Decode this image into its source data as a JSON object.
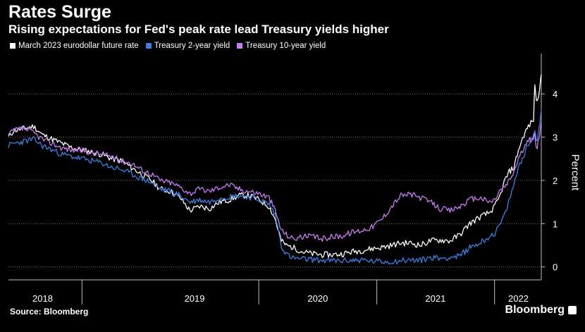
{
  "header": {
    "title": "Rates Surge",
    "subtitle": "Rising expectations for Fed's peak rate lead Treasury yields higher"
  },
  "footer": {
    "source": "Source: Bloomberg",
    "brand": "Bloomberg"
  },
  "colors": {
    "background": "#000000",
    "grid": "#6b6b6b",
    "axis": "#bfbfbf"
  },
  "chart_data": {
    "type": "line",
    "ylabel": "Percent",
    "ylim": [
      -0.3,
      4.9
    ],
    "y_ticks": [
      0,
      1,
      2,
      3,
      4
    ],
    "grid": true,
    "legend_position": "top-left",
    "x_range": [
      "2017-11-15",
      "2022-05-25"
    ],
    "x_tick_labels": [
      "2018",
      "2019",
      "2020",
      "2021",
      "2022"
    ],
    "x_tick_label_positions": [
      "2018-03-01",
      "2019-06-15",
      "2020-07-01",
      "2021-07-01",
      "2022-03-15"
    ],
    "x_separators": [
      "2018-07-01",
      "2019-12-31",
      "2020-12-31",
      "2021-12-31"
    ],
    "series": [
      {
        "name": "March 2023 eurodollar future rate",
        "color": "#ffffff",
        "points": [
          [
            "2017-11-15",
            3.0
          ],
          [
            "2017-12-01",
            3.15
          ],
          [
            "2018-01-01",
            3.2
          ],
          [
            "2018-02-01",
            3.25
          ],
          [
            "2018-03-01",
            3.05
          ],
          [
            "2018-04-01",
            2.95
          ],
          [
            "2018-05-01",
            2.85
          ],
          [
            "2018-06-01",
            2.75
          ],
          [
            "2018-07-01",
            2.7
          ],
          [
            "2018-08-01",
            2.65
          ],
          [
            "2018-09-01",
            2.6
          ],
          [
            "2018-10-01",
            2.5
          ],
          [
            "2018-11-01",
            2.45
          ],
          [
            "2018-12-01",
            2.3
          ],
          [
            "2019-01-01",
            2.15
          ],
          [
            "2019-02-01",
            2.0
          ],
          [
            "2019-03-01",
            1.8
          ],
          [
            "2019-04-01",
            1.75
          ],
          [
            "2019-05-01",
            1.6
          ],
          [
            "2019-06-01",
            1.3
          ],
          [
            "2019-07-01",
            1.4
          ],
          [
            "2019-08-01",
            1.35
          ],
          [
            "2019-09-01",
            1.5
          ],
          [
            "2019-10-01",
            1.55
          ],
          [
            "2019-11-01",
            1.65
          ],
          [
            "2019-12-01",
            1.65
          ],
          [
            "2020-01-01",
            1.55
          ],
          [
            "2020-02-01",
            1.4
          ],
          [
            "2020-02-20",
            1.1
          ],
          [
            "2020-03-10",
            0.6
          ],
          [
            "2020-03-25",
            0.5
          ],
          [
            "2020-04-15",
            0.45
          ],
          [
            "2020-05-15",
            0.35
          ],
          [
            "2020-06-15",
            0.3
          ],
          [
            "2020-07-15",
            0.28
          ],
          [
            "2020-08-15",
            0.28
          ],
          [
            "2020-09-15",
            0.3
          ],
          [
            "2020-10-15",
            0.35
          ],
          [
            "2020-11-15",
            0.38
          ],
          [
            "2020-12-15",
            0.42
          ],
          [
            "2021-01-15",
            0.45
          ],
          [
            "2021-02-15",
            0.5
          ],
          [
            "2021-03-15",
            0.55
          ],
          [
            "2021-04-15",
            0.55
          ],
          [
            "2021-05-15",
            0.5
          ],
          [
            "2021-06-15",
            0.6
          ],
          [
            "2021-07-15",
            0.62
          ],
          [
            "2021-08-15",
            0.6
          ],
          [
            "2021-09-15",
            0.75
          ],
          [
            "2021-10-15",
            1.0
          ],
          [
            "2021-11-15",
            1.15
          ],
          [
            "2021-12-15",
            1.25
          ],
          [
            "2022-01-01",
            1.4
          ],
          [
            "2022-01-15",
            1.6
          ],
          [
            "2022-02-01",
            2.0
          ],
          [
            "2022-02-15",
            2.2
          ],
          [
            "2022-03-01",
            2.3
          ],
          [
            "2022-03-15",
            2.7
          ],
          [
            "2022-04-01",
            3.05
          ],
          [
            "2022-04-15",
            3.25
          ],
          [
            "2022-05-01",
            3.4
          ],
          [
            "2022-05-05",
            4.25
          ],
          [
            "2022-05-10",
            3.8
          ],
          [
            "2022-05-15",
            3.95
          ],
          [
            "2022-05-20",
            4.15
          ],
          [
            "2022-05-25",
            4.45
          ]
        ]
      },
      {
        "name": "Treasury 2-year yield",
        "color": "#3d7fe0",
        "points": [
          [
            "2017-11-15",
            2.8
          ],
          [
            "2017-12-01",
            2.85
          ],
          [
            "2018-01-01",
            2.9
          ],
          [
            "2018-02-01",
            2.95
          ],
          [
            "2018-03-01",
            2.8
          ],
          [
            "2018-04-01",
            2.7
          ],
          [
            "2018-05-01",
            2.6
          ],
          [
            "2018-06-01",
            2.55
          ],
          [
            "2018-07-01",
            2.5
          ],
          [
            "2018-08-01",
            2.45
          ],
          [
            "2018-09-01",
            2.4
          ],
          [
            "2018-10-01",
            2.3
          ],
          [
            "2018-11-01",
            2.25
          ],
          [
            "2018-12-01",
            2.15
          ],
          [
            "2019-01-01",
            2.05
          ],
          [
            "2019-02-01",
            1.95
          ],
          [
            "2019-03-01",
            1.8
          ],
          [
            "2019-04-01",
            1.75
          ],
          [
            "2019-05-01",
            1.65
          ],
          [
            "2019-06-01",
            1.5
          ],
          [
            "2019-07-01",
            1.55
          ],
          [
            "2019-08-01",
            1.5
          ],
          [
            "2019-09-01",
            1.6
          ],
          [
            "2019-10-01",
            1.62
          ],
          [
            "2019-11-01",
            1.65
          ],
          [
            "2019-12-01",
            1.62
          ],
          [
            "2020-01-01",
            1.55
          ],
          [
            "2020-02-01",
            1.45
          ],
          [
            "2020-02-20",
            1.2
          ],
          [
            "2020-03-10",
            0.5
          ],
          [
            "2020-03-25",
            0.3
          ],
          [
            "2020-04-15",
            0.2
          ],
          [
            "2020-05-15",
            0.18
          ],
          [
            "2020-06-15",
            0.17
          ],
          [
            "2020-07-15",
            0.15
          ],
          [
            "2020-08-15",
            0.14
          ],
          [
            "2020-09-15",
            0.14
          ],
          [
            "2020-10-15",
            0.15
          ],
          [
            "2020-11-15",
            0.16
          ],
          [
            "2020-12-15",
            0.13
          ],
          [
            "2021-01-15",
            0.12
          ],
          [
            "2021-02-15",
            0.12
          ],
          [
            "2021-03-15",
            0.15
          ],
          [
            "2021-04-15",
            0.16
          ],
          [
            "2021-05-15",
            0.15
          ],
          [
            "2021-06-15",
            0.22
          ],
          [
            "2021-07-15",
            0.2
          ],
          [
            "2021-08-15",
            0.22
          ],
          [
            "2021-09-15",
            0.25
          ],
          [
            "2021-10-15",
            0.45
          ],
          [
            "2021-11-15",
            0.55
          ],
          [
            "2021-12-15",
            0.7
          ],
          [
            "2022-01-01",
            0.78
          ],
          [
            "2022-01-15",
            0.95
          ],
          [
            "2022-02-01",
            1.2
          ],
          [
            "2022-02-15",
            1.55
          ],
          [
            "2022-03-01",
            1.9
          ],
          [
            "2022-03-15",
            2.3
          ],
          [
            "2022-04-01",
            2.6
          ],
          [
            "2022-04-15",
            2.85
          ],
          [
            "2022-05-01",
            3.0
          ],
          [
            "2022-05-05",
            3.2
          ],
          [
            "2022-05-10",
            2.9
          ],
          [
            "2022-05-15",
            3.1
          ],
          [
            "2022-05-20",
            3.3
          ],
          [
            "2022-05-25",
            3.65
          ]
        ]
      },
      {
        "name": "Treasury 10-year yield",
        "color": "#c77df2",
        "points": [
          [
            "2017-11-15",
            3.05
          ],
          [
            "2017-12-01",
            3.15
          ],
          [
            "2018-01-01",
            3.2
          ],
          [
            "2018-02-01",
            3.1
          ],
          [
            "2018-03-01",
            2.95
          ],
          [
            "2018-04-01",
            2.85
          ],
          [
            "2018-05-01",
            2.75
          ],
          [
            "2018-06-01",
            2.7
          ],
          [
            "2018-07-01",
            2.7
          ],
          [
            "2018-08-01",
            2.65
          ],
          [
            "2018-09-01",
            2.6
          ],
          [
            "2018-10-01",
            2.55
          ],
          [
            "2018-11-01",
            2.45
          ],
          [
            "2018-12-01",
            2.4
          ],
          [
            "2019-01-01",
            2.25
          ],
          [
            "2019-02-01",
            2.15
          ],
          [
            "2019-03-01",
            2.0
          ],
          [
            "2019-04-01",
            1.95
          ],
          [
            "2019-05-01",
            1.85
          ],
          [
            "2019-06-01",
            1.7
          ],
          [
            "2019-07-01",
            1.8
          ],
          [
            "2019-08-01",
            1.75
          ],
          [
            "2019-09-01",
            1.85
          ],
          [
            "2019-10-01",
            1.9
          ],
          [
            "2019-11-01",
            1.8
          ],
          [
            "2019-12-01",
            1.75
          ],
          [
            "2020-01-01",
            1.7
          ],
          [
            "2020-02-01",
            1.6
          ],
          [
            "2020-02-20",
            1.3
          ],
          [
            "2020-03-10",
            0.85
          ],
          [
            "2020-03-25",
            0.75
          ],
          [
            "2020-04-15",
            0.65
          ],
          [
            "2020-05-15",
            0.7
          ],
          [
            "2020-06-15",
            0.7
          ],
          [
            "2020-07-15",
            0.65
          ],
          [
            "2020-08-15",
            0.7
          ],
          [
            "2020-09-15",
            0.72
          ],
          [
            "2020-10-15",
            0.8
          ],
          [
            "2020-11-15",
            0.85
          ],
          [
            "2020-12-15",
            0.92
          ],
          [
            "2021-01-15",
            1.1
          ],
          [
            "2021-02-15",
            1.4
          ],
          [
            "2021-03-15",
            1.65
          ],
          [
            "2021-04-15",
            1.68
          ],
          [
            "2021-05-15",
            1.6
          ],
          [
            "2021-06-15",
            1.5
          ],
          [
            "2021-07-15",
            1.35
          ],
          [
            "2021-08-15",
            1.3
          ],
          [
            "2021-09-15",
            1.4
          ],
          [
            "2021-10-15",
            1.55
          ],
          [
            "2021-11-15",
            1.6
          ],
          [
            "2021-12-15",
            1.5
          ],
          [
            "2022-01-01",
            1.55
          ],
          [
            "2022-01-15",
            1.75
          ],
          [
            "2022-02-01",
            1.85
          ],
          [
            "2022-02-15",
            2.0
          ],
          [
            "2022-03-01",
            2.2
          ],
          [
            "2022-03-15",
            2.5
          ],
          [
            "2022-04-01",
            2.75
          ],
          [
            "2022-04-15",
            2.9
          ],
          [
            "2022-05-01",
            3.0
          ],
          [
            "2022-05-05",
            3.05
          ],
          [
            "2022-05-10",
            2.7
          ],
          [
            "2022-05-15",
            2.85
          ],
          [
            "2022-05-20",
            3.1
          ],
          [
            "2022-05-25",
            3.35
          ]
        ]
      }
    ]
  }
}
